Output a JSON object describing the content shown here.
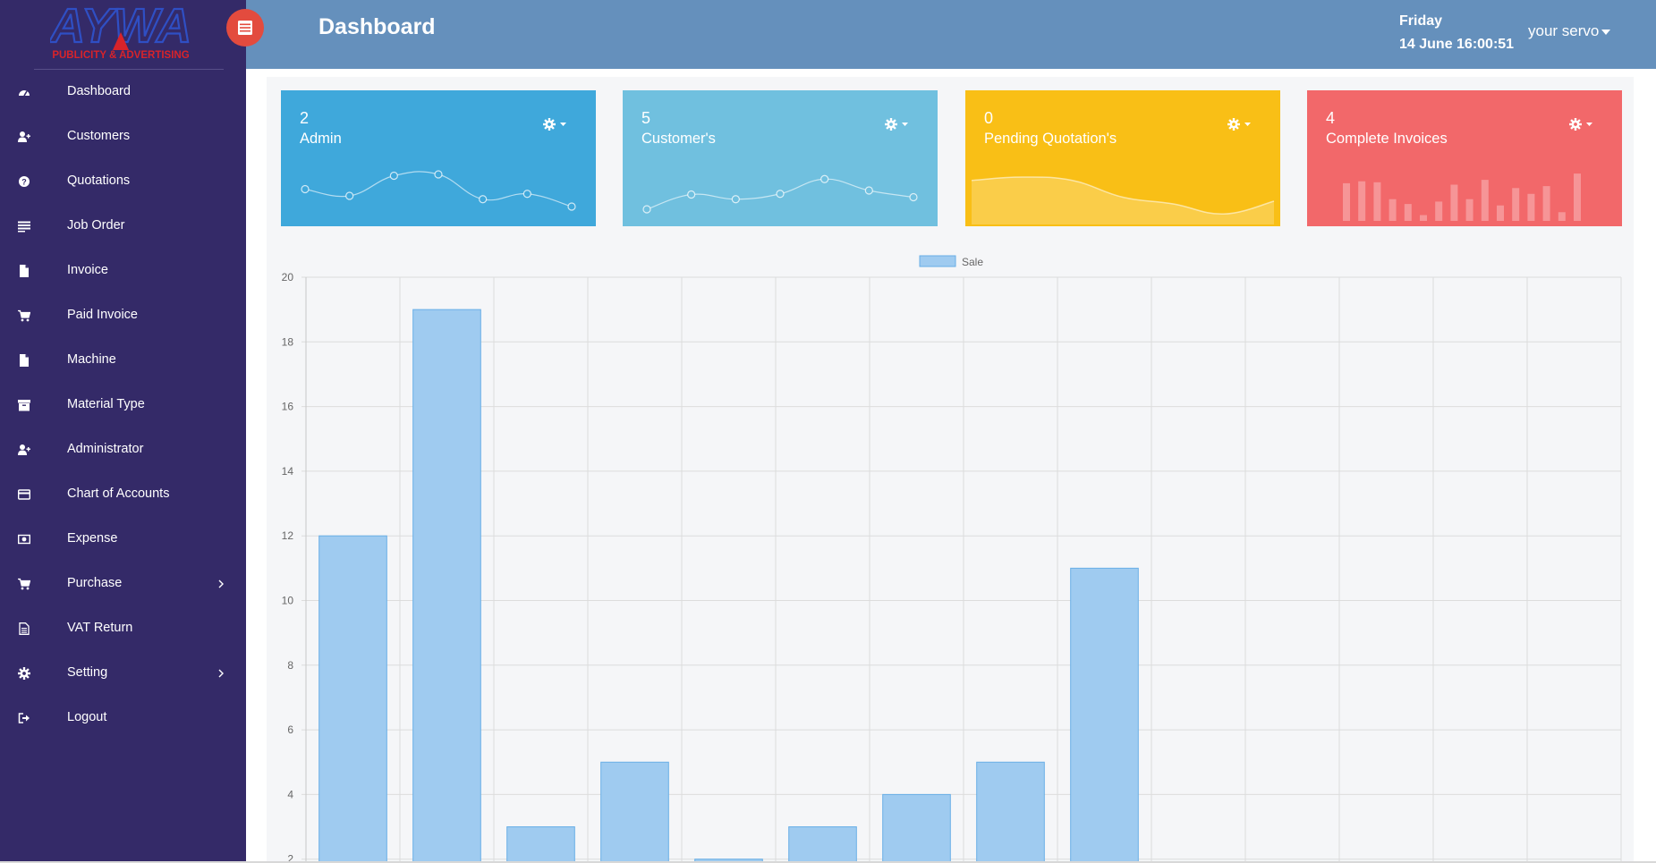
{
  "logo": {
    "text": "AYWA",
    "tagline": "PUBLICITY & ADVERTISING",
    "primary_color": "#2f4fc4",
    "accent_color": "#d8232a"
  },
  "sidebar": {
    "items": [
      {
        "label": "Dashboard",
        "icon": "dashboard-icon",
        "has_submenu": false
      },
      {
        "label": "Customers",
        "icon": "user-plus-icon",
        "has_submenu": false
      },
      {
        "label": "Quotations",
        "icon": "question-circle-icon",
        "has_submenu": false
      },
      {
        "label": "Job Order",
        "icon": "list-icon",
        "has_submenu": false
      },
      {
        "label": "Invoice",
        "icon": "file-icon",
        "has_submenu": false
      },
      {
        "label": "Paid Invoice",
        "icon": "cart-icon",
        "has_submenu": false
      },
      {
        "label": "Machine",
        "icon": "file-icon",
        "has_submenu": false
      },
      {
        "label": "Material Type",
        "icon": "archive-icon",
        "has_submenu": false
      },
      {
        "label": "Administrator",
        "icon": "user-plus-icon",
        "has_submenu": false
      },
      {
        "label": "Chart of Accounts",
        "icon": "credit-card-icon",
        "has_submenu": false
      },
      {
        "label": "Expense",
        "icon": "money-icon",
        "has_submenu": false
      },
      {
        "label": "Purchase",
        "icon": "cart-icon",
        "has_submenu": true
      },
      {
        "label": "VAT Return",
        "icon": "file-text-icon",
        "has_submenu": false
      },
      {
        "label": "Setting",
        "icon": "gear-icon",
        "has_submenu": true
      },
      {
        "label": "Logout",
        "icon": "sign-out-icon",
        "has_submenu": false
      }
    ]
  },
  "header": {
    "title": "Dashboard",
    "day": "Friday",
    "datetime": "14 June 16:00:51",
    "user": "your servo",
    "menu_toggle_icon": "menu-toggle-icon"
  },
  "cards": [
    {
      "value": "2",
      "label": "Admin",
      "color": "#3fa8db",
      "spark_type": "line",
      "spark_values": [
        5,
        4,
        7,
        7.2,
        3.5,
        4.3,
        2.4
      ]
    },
    {
      "value": "5",
      "label": "Customer's",
      "color": "#70c0df",
      "spark_type": "line",
      "spark_values": [
        2,
        4.2,
        3.5,
        4.3,
        6.5,
        4.8,
        3.8
      ]
    },
    {
      "value": "0",
      "label": "Pending Quotation's",
      "color": "#f9bf16",
      "spark_type": "area",
      "spark_values": [
        6.3,
        6.8,
        6.3,
        3.8,
        2.8,
        1.3,
        3.2
      ]
    },
    {
      "value": "4",
      "label": "Complete Invoices",
      "color": "#f2686a",
      "spark_type": "bar",
      "spark_values": [
        78,
        82,
        80,
        45,
        35,
        12,
        40,
        75,
        45,
        85,
        32,
        68,
        56,
        72,
        18,
        98
      ]
    }
  ],
  "chart_data": {
    "type": "bar",
    "series": [
      {
        "name": "Sale",
        "values": [
          12,
          19,
          3,
          5,
          2,
          3,
          4,
          5,
          11,
          0,
          0,
          0,
          0,
          0
        ]
      }
    ],
    "ylim": [
      0,
      20
    ],
    "yticks": [
      2,
      4,
      6,
      8,
      10,
      12,
      14,
      16,
      18,
      20
    ],
    "grid": true,
    "legend": "top-center",
    "bar_color": "#9fcbf0",
    "bar_border": "#68aee6"
  }
}
